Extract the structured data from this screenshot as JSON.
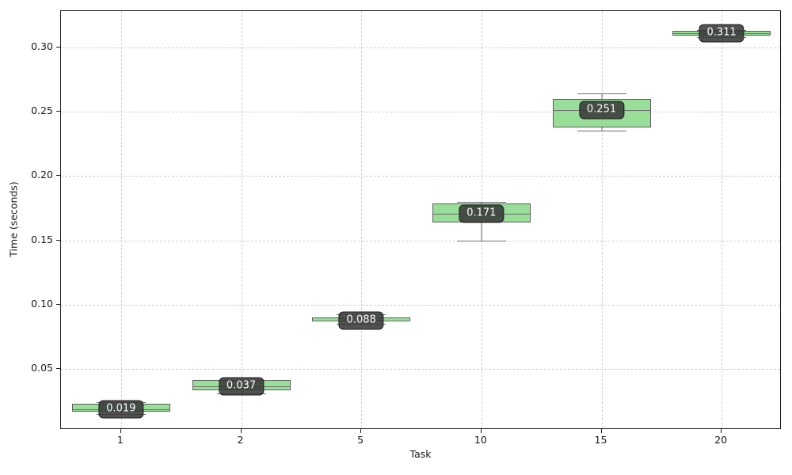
{
  "chart_data": {
    "type": "box",
    "title": "",
    "xlabel": "Task",
    "ylabel": "Time (seconds)",
    "categories": [
      "1",
      "2",
      "5",
      "10",
      "15",
      "20"
    ],
    "yticks": [
      0.05,
      0.1,
      0.15,
      0.2,
      0.25,
      0.3
    ],
    "ytick_labels": [
      "0.05",
      "0.10",
      "0.15",
      "0.20",
      "0.25",
      "0.30"
    ],
    "ylim": [
      0.003,
      0.328
    ],
    "grid": true,
    "grid_style": "dashed",
    "legend": "none",
    "series": [
      {
        "category": "1",
        "whisker_low": 0.0155,
        "q1": 0.017,
        "median": 0.019,
        "q3": 0.0235,
        "whisker_high": 0.0245,
        "label": "0.019"
      },
      {
        "category": "2",
        "whisker_low": 0.0315,
        "q1": 0.034,
        "median": 0.037,
        "q3": 0.0415,
        "whisker_high": 0.042,
        "label": "0.037"
      },
      {
        "category": "5",
        "whisker_low": 0.0855,
        "q1": 0.087,
        "median": 0.088,
        "q3": 0.0905,
        "whisker_high": 0.0925,
        "label": "0.088"
      },
      {
        "category": "10",
        "whisker_low": 0.15,
        "q1": 0.164,
        "median": 0.171,
        "q3": 0.179,
        "whisker_high": 0.18,
        "label": "0.171"
      },
      {
        "category": "15",
        "whisker_low": 0.235,
        "q1": 0.2375,
        "median": 0.251,
        "q3": 0.26,
        "whisker_high": 0.264,
        "label": "0.251"
      },
      {
        "category": "20",
        "whisker_low": 0.3075,
        "q1": 0.309,
        "median": 0.311,
        "q3": 0.3125,
        "whisker_high": 0.313,
        "label": "0.311"
      }
    ],
    "colors": {
      "box_fill": "#98dd98",
      "box_edge": "#5f5f5f",
      "median_line": "#6a6a6a",
      "whisker": "#6e6e6e",
      "label_bg": "rgba(55,55,55,0.87)",
      "label_text": "#ffffff",
      "grid": "#cfcfcf",
      "axis": "#1a1a1a",
      "background": "#ffffff"
    }
  }
}
